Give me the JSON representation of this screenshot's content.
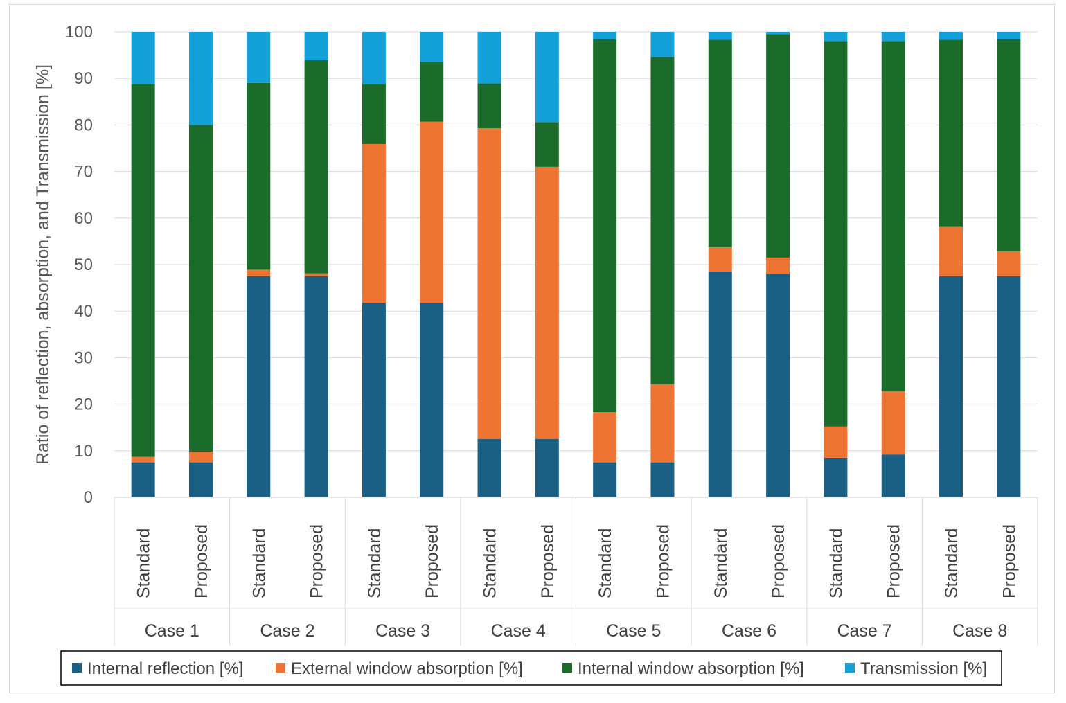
{
  "chart_data": {
    "type": "bar",
    "stacked": true,
    "title": "",
    "ylabel": "Ratio of reflection, absorption, and Transmission [%]",
    "xlabel": "",
    "ylim": [
      0,
      100
    ],
    "yticks": [
      0,
      10,
      20,
      30,
      40,
      50,
      60,
      70,
      80,
      90,
      100
    ],
    "grid": true,
    "legend_position": "bottom",
    "groups": [
      "Case 1",
      "Case 2",
      "Case 3",
      "Case 4",
      "Case 5",
      "Case 6",
      "Case 7",
      "Case 8"
    ],
    "subcategories": [
      "Standard",
      "Proposed"
    ],
    "series": [
      {
        "name": "Internal reflection [%]",
        "color": "#1a6085",
        "values": [
          7.5,
          7.5,
          47.5,
          47.5,
          41.8,
          41.8,
          12.5,
          12.5,
          7.5,
          7.5,
          48.5,
          48,
          8.5,
          9.2,
          47.5,
          47.5
        ]
      },
      {
        "name": "External window absorption [%]",
        "color": "#ed7433",
        "values": [
          1.2,
          2.3,
          1.4,
          0.6,
          34.1,
          38.9,
          66.8,
          58.5,
          10.8,
          16.8,
          5.2,
          3.5,
          6.7,
          13.6,
          10.6,
          5.3
        ]
      },
      {
        "name": "Internal window absorption [%]",
        "color": "#1b6b2a",
        "values": [
          80,
          70.2,
          40.1,
          45.8,
          12.9,
          12.9,
          9.6,
          9.6,
          80.1,
          70.3,
          44.6,
          48,
          82.8,
          75.2,
          40.2,
          45.6
        ]
      },
      {
        "name": "Transmission [%]",
        "color": "#14a0d8",
        "values": [
          11.3,
          20,
          11,
          6.1,
          11.2,
          6.4,
          11.1,
          19.4,
          1.6,
          5.4,
          1.7,
          0.5,
          2,
          2,
          1.7,
          1.6
        ]
      }
    ]
  }
}
